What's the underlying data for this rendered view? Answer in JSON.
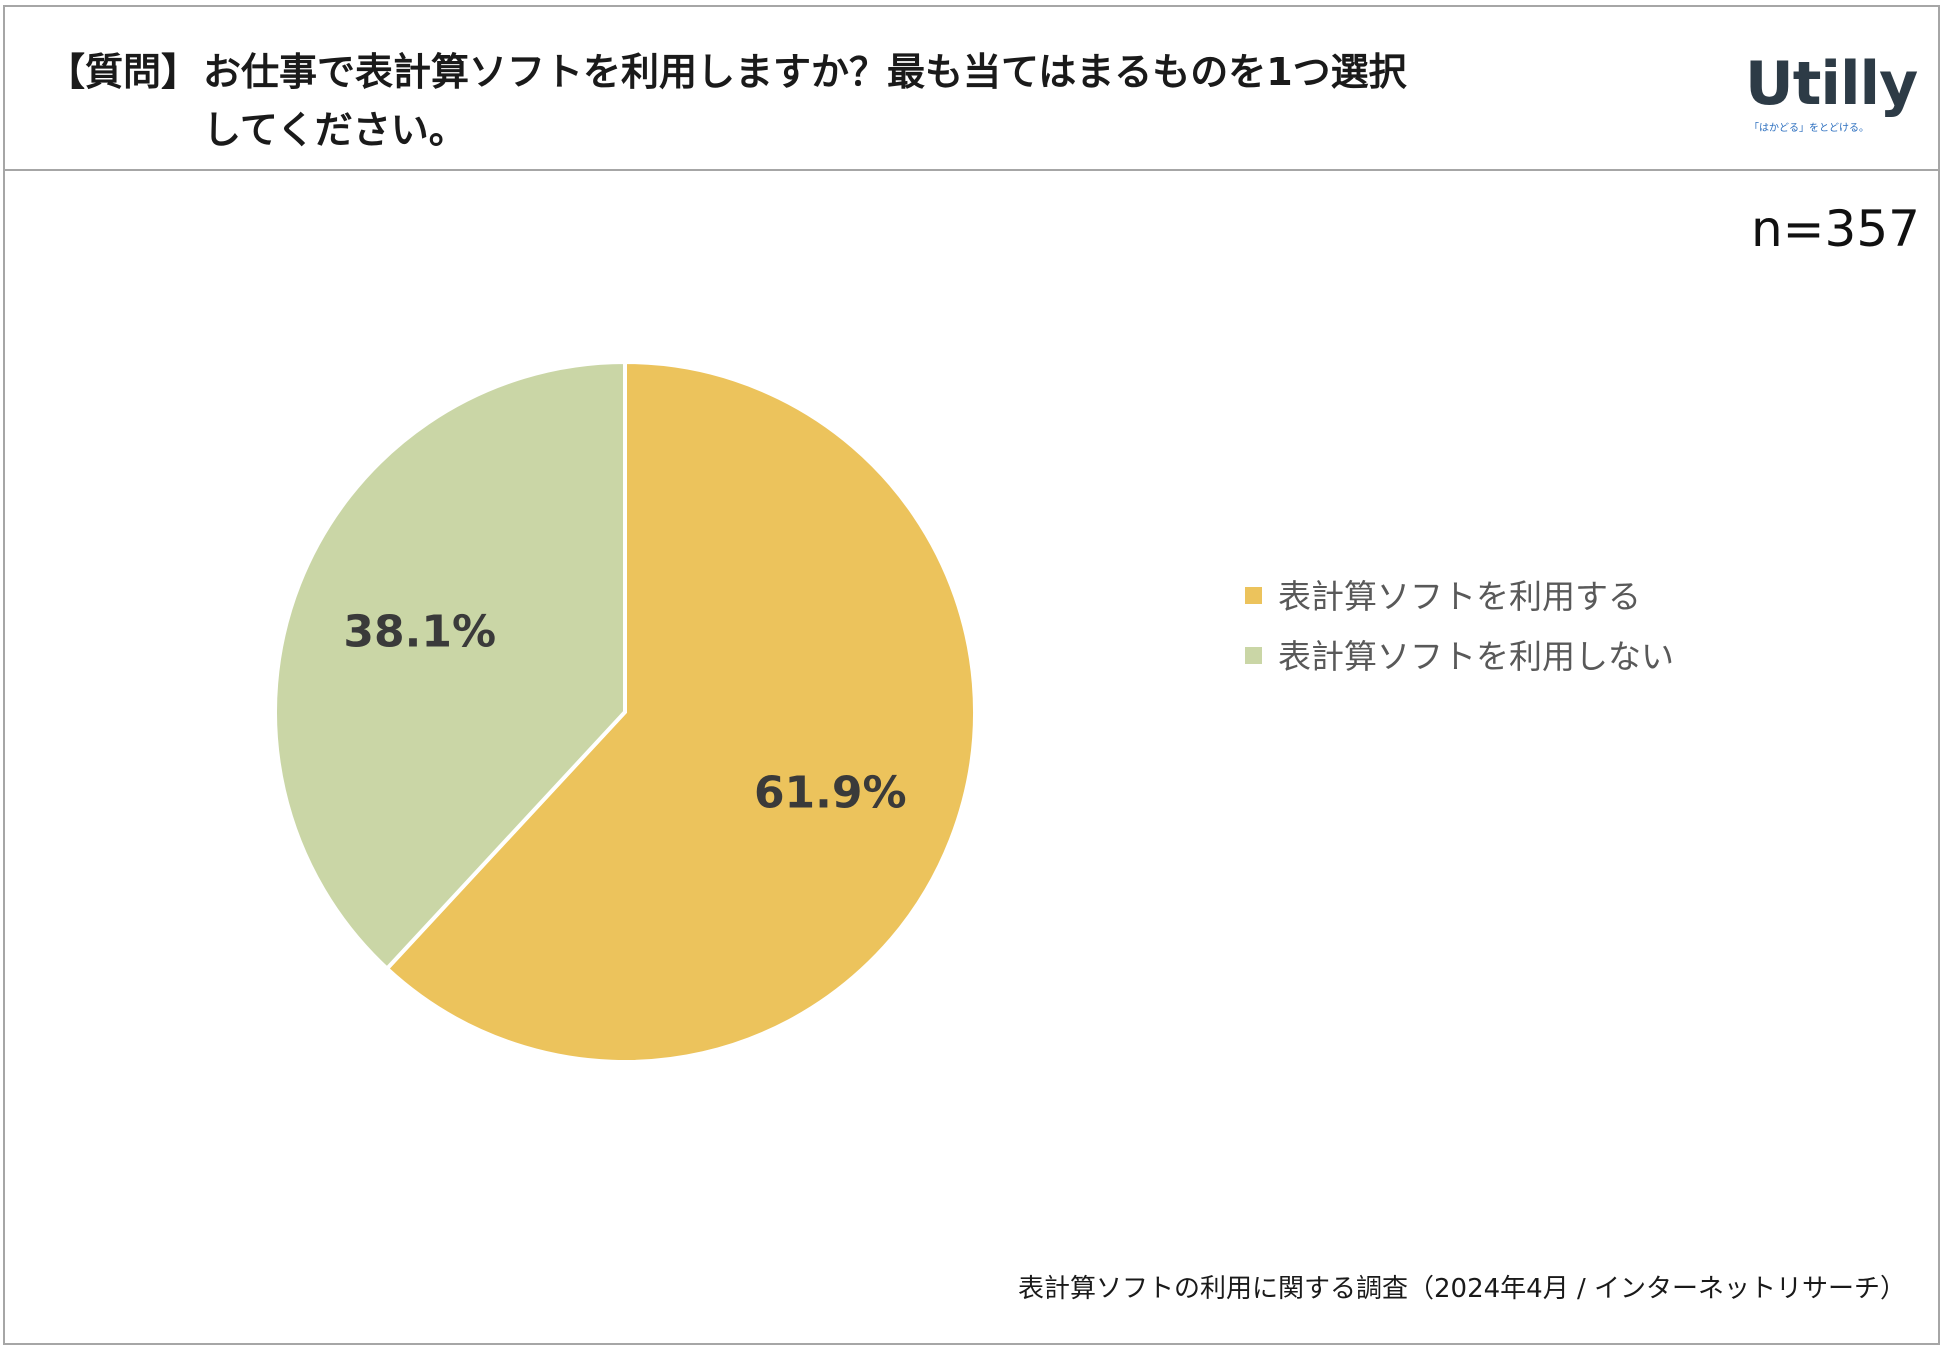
{
  "header": {
    "tag": "【質問】",
    "question_line1": "お仕事で表計算ソフトを利用しますか？最も当てはまるものを1つ選択",
    "question_line2": "してください。"
  },
  "logo": {
    "word": "Utilly",
    "tagline": "「はかどる」をとどける。"
  },
  "sample_size": "n=357",
  "source": "表計算ソフトの利用に関する調査（2024年4月 / インターネットリサーチ）",
  "chart_data": {
    "type": "pie",
    "title": "",
    "slices": [
      {
        "label": "表計算ソフトを利用する",
        "value": 61.9,
        "display": "61.9%",
        "color": "#ECC35C"
      },
      {
        "label": "表計算ソフトを利用しない",
        "value": 38.1,
        "display": "38.1%",
        "color": "#CAD6A6"
      }
    ],
    "start": "12 o'clock, clockwise",
    "legend_placement": "right"
  }
}
